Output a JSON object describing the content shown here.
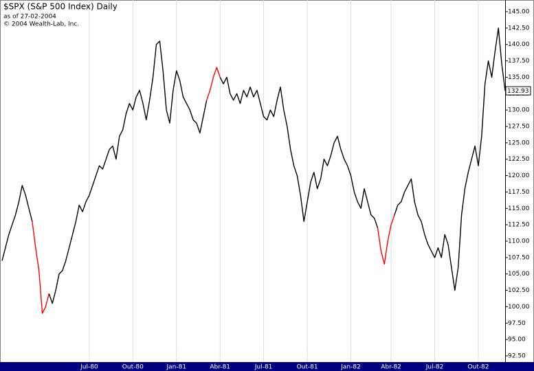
{
  "chart_data": {
    "type": "line",
    "title": "$SPX (S&P 500 Index) Daily",
    "subtitle": "as of 27-02-2004",
    "copyright": "© 2004 Wealth-Lab, Inc.",
    "categories": [
      null,
      null,
      null,
      null,
      null,
      null,
      null,
      null,
      null,
      null,
      null,
      null,
      null,
      null,
      null,
      null,
      null,
      null,
      null,
      null,
      null,
      null,
      null,
      null,
      null,
      null,
      "Jul-80",
      null,
      null,
      null,
      null,
      null,
      null,
      null,
      null,
      null,
      null,
      null,
      null,
      "Out-80",
      null,
      null,
      null,
      null,
      null,
      null,
      null,
      null,
      null,
      null,
      null,
      null,
      "Jan-81",
      null,
      null,
      null,
      null,
      null,
      null,
      null,
      null,
      null,
      null,
      null,
      null,
      "Abr-81",
      null,
      null,
      null,
      null,
      null,
      null,
      null,
      null,
      null,
      null,
      null,
      null,
      "Jul-81",
      null,
      null,
      null,
      null,
      null,
      null,
      null,
      null,
      null,
      null,
      null,
      null,
      "Out-81",
      null,
      null,
      null,
      null,
      null,
      null,
      null,
      null,
      null,
      null,
      null,
      null,
      "Jan-82",
      null,
      null,
      null,
      null,
      null,
      null,
      null,
      null,
      null,
      null,
      null,
      "Abr-82",
      null,
      null,
      null,
      null,
      null,
      null,
      null,
      null,
      null,
      null,
      null,
      null,
      "Jul-82",
      null,
      null,
      null,
      null,
      null,
      null,
      null,
      null,
      null,
      null,
      null,
      null,
      "Out-82",
      null,
      null,
      null,
      null,
      null,
      null,
      null,
      null
    ],
    "values": [
      107,
      109,
      111,
      112.5,
      114,
      116,
      118.5,
      117,
      115,
      113,
      109,
      105.5,
      99,
      100,
      102,
      100.5,
      102.5,
      105,
      105.5,
      107,
      109,
      111,
      113,
      115.5,
      114.5,
      116,
      117,
      118.5,
      120,
      121.5,
      121,
      122.5,
      124,
      124.5,
      122.5,
      126,
      127,
      129.5,
      131,
      130,
      132,
      133,
      131,
      128.5,
      131.5,
      135,
      140,
      140.5,
      136,
      130,
      128,
      133,
      136,
      134.5,
      132,
      131,
      130,
      128.5,
      128,
      126.5,
      129,
      131.5,
      133,
      135,
      136.5,
      135,
      134,
      135,
      132.5,
      131.5,
      132.5,
      131,
      133,
      132,
      133.5,
      132,
      133,
      131,
      129,
      128.5,
      130,
      129,
      131.5,
      133.5,
      130,
      127.5,
      124,
      121.5,
      120,
      117,
      113,
      116,
      119,
      120.5,
      118,
      119.5,
      122.5,
      121.5,
      123,
      125,
      126,
      124,
      122.5,
      121.5,
      120,
      117.5,
      116,
      115,
      118,
      116,
      114,
      113.5,
      112,
      108.5,
      106.5,
      110,
      112.5,
      114,
      115.5,
      116,
      117.5,
      118.5,
      119.5,
      116,
      114,
      113,
      111,
      109.5,
      108.5,
      107.5,
      109,
      107.5,
      111,
      109.5,
      106,
      102.5,
      106,
      114,
      118,
      120.5,
      122.5,
      124.5,
      121.5,
      126,
      134,
      137.5,
      135,
      139,
      142.5,
      137,
      132.93
    ],
    "colors": [
      "#000000",
      "#000000",
      "#000000",
      "#000000",
      "#000000",
      "#000000",
      "#000000",
      "#000000",
      "#000000",
      "#ff0000",
      "#ff0000",
      "#ff0000",
      "#ff0000",
      "#ff0000",
      "#000000",
      "#000000",
      "#000000",
      "#000000",
      "#000000",
      "#000000",
      "#000000",
      "#000000",
      "#000000",
      "#000000",
      "#000000",
      "#000000",
      "#000000",
      "#000000",
      "#000000",
      "#000000",
      "#000000",
      "#000000",
      "#000000",
      "#000000",
      "#000000",
      "#000000",
      "#000000",
      "#000000",
      "#000000",
      "#000000",
      "#000000",
      "#000000",
      "#000000",
      "#000000",
      "#000000",
      "#000000",
      "#000000",
      "#000000",
      "#000000",
      "#000000",
      "#000000",
      "#000000",
      "#000000",
      "#000000",
      "#000000",
      "#000000",
      "#000000",
      "#000000",
      "#000000",
      "#000000",
      "#000000",
      "#ff0000",
      "#ff0000",
      "#ff0000",
      "#ff0000",
      "#000000",
      "#000000",
      "#000000",
      "#000000",
      "#000000",
      "#000000",
      "#000000",
      "#000000",
      "#000000",
      "#000000",
      "#000000",
      "#000000",
      "#000000",
      "#000000",
      "#000000",
      "#000000",
      "#000000",
      "#000000",
      "#000000",
      "#000000",
      "#000000",
      "#000000",
      "#000000",
      "#000000",
      "#000000",
      "#000000",
      "#000000",
      "#000000",
      "#000000",
      "#000000",
      "#000000",
      "#000000",
      "#000000",
      "#000000",
      "#000000",
      "#000000",
      "#000000",
      "#000000",
      "#000000",
      "#000000",
      "#000000",
      "#000000",
      "#000000",
      "#000000",
      "#000000",
      "#000000",
      "#000000",
      "#ff0000",
      "#ff0000",
      "#ff0000",
      "#ff0000",
      "#ff0000",
      "#000000",
      "#000000",
      "#000000",
      "#000000",
      "#000000",
      "#000000",
      "#000000",
      "#000000",
      "#000000",
      "#000000",
      "#000000",
      "#000000",
      "#000000",
      "#000000",
      "#000000",
      "#000000",
      "#000000",
      "#000000",
      "#000000",
      "#000000",
      "#000000",
      "#000000",
      "#000000",
      "#000000",
      "#000000",
      "#000000",
      "#000000",
      "#000000",
      "#000000",
      "#000000",
      "#000000",
      "#000000",
      "#000000",
      "#000000"
    ],
    "ylim": [
      91.56,
      146.78
    ],
    "yticks": [
      {
        "value": 92.5,
        "label": "92.50"
      },
      {
        "value": 95,
        "label": "95.00"
      },
      {
        "value": 97.5,
        "label": "97.50"
      },
      {
        "value": 100,
        "label": "100.00"
      },
      {
        "value": 102.5,
        "label": "102.50"
      },
      {
        "value": 105,
        "label": "105.00"
      },
      {
        "value": 107.5,
        "label": "107.50"
      },
      {
        "value": 110,
        "label": "110.00"
      },
      {
        "value": 112.5,
        "label": "112.50"
      },
      {
        "value": 115,
        "label": "115.00"
      },
      {
        "value": 117.5,
        "label": "117.50"
      },
      {
        "value": 120,
        "label": "120.00"
      },
      {
        "value": 122.5,
        "label": "122.50"
      },
      {
        "value": 125,
        "label": "125.00"
      },
      {
        "value": 127.5,
        "label": "127.50"
      },
      {
        "value": 130,
        "label": "130.00"
      },
      {
        "value": 132.5,
        "label": "132.50"
      },
      {
        "value": 135,
        "label": "135.00"
      },
      {
        "value": 137.5,
        "label": "137.50"
      },
      {
        "value": 140,
        "label": "140.00"
      },
      {
        "value": 142.5,
        "label": "142.50"
      },
      {
        "value": 145,
        "label": "145.00"
      }
    ],
    "grid": true,
    "axis_band_color": "#000080"
  }
}
